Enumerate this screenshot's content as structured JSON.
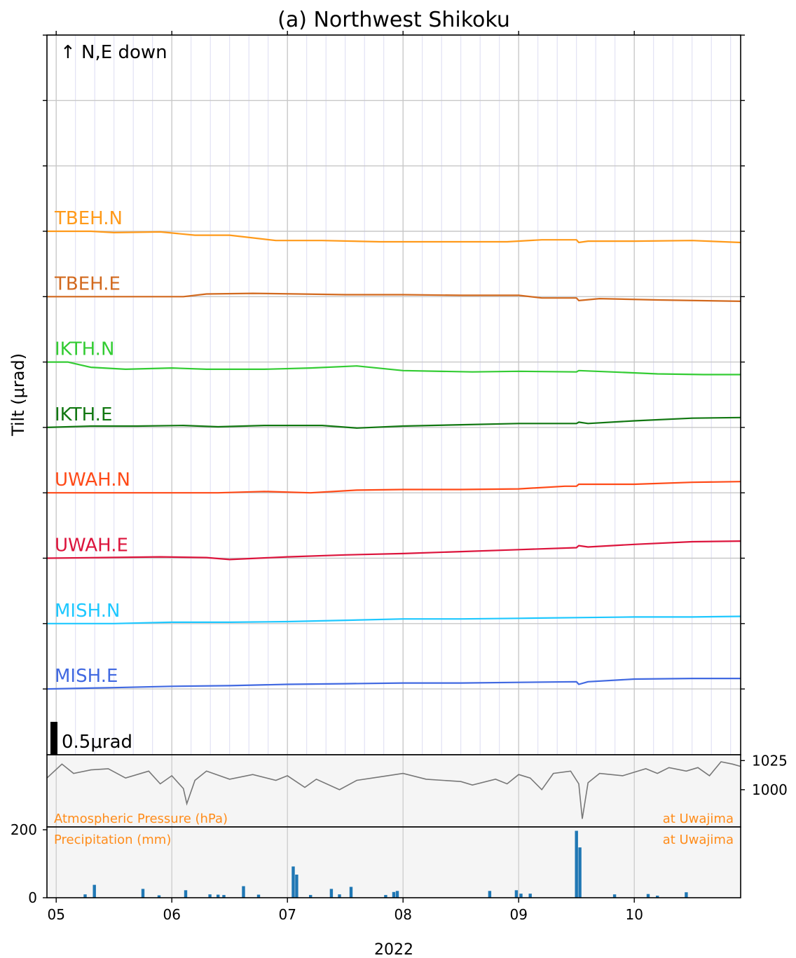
{
  "chart_data": [
    {
      "type": "line",
      "title": "(a) Northwest Shikoku",
      "ylabel": "Tilt (μrad)",
      "xlabel": "2022",
      "x_tick_labels": [
        "05",
        "06",
        "07",
        "08",
        "09",
        "10"
      ],
      "x_tick_days": [
        5,
        6,
        7,
        8,
        9,
        10
      ],
      "xlim_days": [
        4.92,
        10.92
      ],
      "direction_note": "↑ N,E down",
      "scale_bar_label": "0.5μrad",
      "scale_bar_value": 0.5,
      "grid": true,
      "series": [
        {
          "name": "TBEH.N",
          "color": "#ff9a1a",
          "x": [
            4.92,
            5.3,
            5.5,
            5.9,
            6.2,
            6.5,
            6.9,
            7.3,
            7.8,
            8.4,
            8.9,
            9.2,
            9.5,
            9.52,
            9.6,
            10.0,
            10.5,
            10.92
          ],
          "y": [
            0.0,
            0.0,
            -0.02,
            -0.01,
            -0.06,
            -0.06,
            -0.14,
            -0.14,
            -0.16,
            -0.16,
            -0.16,
            -0.13,
            -0.13,
            -0.17,
            -0.15,
            -0.15,
            -0.14,
            -0.17
          ]
        },
        {
          "name": "TBEH.E",
          "color": "#d2691e",
          "x": [
            4.92,
            5.5,
            6.1,
            6.3,
            6.7,
            7.1,
            7.5,
            8.0,
            8.5,
            9.0,
            9.2,
            9.5,
            9.52,
            9.7,
            10.2,
            10.92
          ],
          "y": [
            0.0,
            0.0,
            0.0,
            0.04,
            0.05,
            0.04,
            0.03,
            0.03,
            0.02,
            0.02,
            -0.02,
            -0.02,
            -0.06,
            -0.03,
            -0.05,
            -0.07
          ]
        },
        {
          "name": "IKTH.N",
          "color": "#33cc33",
          "x": [
            4.92,
            5.1,
            5.3,
            5.6,
            6.0,
            6.3,
            6.8,
            7.2,
            7.6,
            8.0,
            8.6,
            9.0,
            9.5,
            9.52,
            9.8,
            10.2,
            10.6,
            10.92
          ],
          "y": [
            0.0,
            0.0,
            -0.08,
            -0.11,
            -0.09,
            -0.11,
            -0.11,
            -0.09,
            -0.06,
            -0.13,
            -0.15,
            -0.14,
            -0.15,
            -0.13,
            -0.15,
            -0.18,
            -0.19,
            -0.19
          ]
        },
        {
          "name": "IKTH.E",
          "color": "#117711",
          "x": [
            4.92,
            5.3,
            5.7,
            6.1,
            6.4,
            6.8,
            7.3,
            7.6,
            8.0,
            8.5,
            9.0,
            9.5,
            9.52,
            9.6,
            10.0,
            10.5,
            10.92
          ],
          "y": [
            0.0,
            0.02,
            0.02,
            0.03,
            0.01,
            0.03,
            0.03,
            -0.01,
            0.02,
            0.04,
            0.06,
            0.06,
            0.08,
            0.06,
            0.1,
            0.14,
            0.15
          ]
        },
        {
          "name": "UWAH.N",
          "color": "#ff4a18",
          "x": [
            4.92,
            5.3,
            5.8,
            6.4,
            6.8,
            7.2,
            7.6,
            8.0,
            8.5,
            9.0,
            9.4,
            9.5,
            9.52,
            10.0,
            10.5,
            10.92
          ],
          "y": [
            0.0,
            0.0,
            0.0,
            0.0,
            0.02,
            0.0,
            0.04,
            0.05,
            0.05,
            0.06,
            0.1,
            0.1,
            0.13,
            0.13,
            0.16,
            0.17
          ]
        },
        {
          "name": "UWAH.E",
          "color": "#dc143c",
          "x": [
            4.92,
            5.4,
            5.9,
            6.3,
            6.5,
            7.0,
            7.5,
            8.0,
            8.5,
            9.0,
            9.5,
            9.52,
            9.6,
            10.0,
            10.5,
            10.92
          ],
          "y": [
            0.0,
            0.01,
            0.02,
            0.01,
            -0.02,
            0.02,
            0.05,
            0.07,
            0.1,
            0.13,
            0.16,
            0.19,
            0.17,
            0.21,
            0.25,
            0.26
          ]
        },
        {
          "name": "MISH.N",
          "color": "#1ec8ff",
          "x": [
            4.92,
            5.5,
            6.0,
            6.5,
            7.0,
            7.5,
            8.0,
            8.5,
            9.0,
            9.5,
            10.0,
            10.5,
            10.92
          ],
          "y": [
            0.0,
            0.0,
            0.02,
            0.02,
            0.03,
            0.05,
            0.07,
            0.07,
            0.08,
            0.09,
            0.1,
            0.1,
            0.11
          ]
        },
        {
          "name": "MISH.E",
          "color": "#4169e1",
          "x": [
            4.92,
            5.5,
            6.0,
            6.5,
            7.0,
            7.5,
            8.0,
            8.5,
            9.0,
            9.5,
            9.52,
            9.6,
            10.0,
            10.5,
            10.92
          ],
          "y": [
            0.0,
            0.02,
            0.04,
            0.05,
            0.07,
            0.08,
            0.09,
            0.09,
            0.1,
            0.11,
            0.07,
            0.11,
            0.15,
            0.16,
            0.16
          ]
        }
      ]
    },
    {
      "type": "line",
      "label": "Atmospheric Pressure (hPa)",
      "location": "at Uwajima",
      "y_tick_labels": [
        "1025",
        "1000"
      ],
      "y_ticks": [
        1025,
        1000
      ],
      "ylim": [
        968,
        1030
      ],
      "color": "#777777",
      "x": [
        4.92,
        5.05,
        5.15,
        5.3,
        5.45,
        5.6,
        5.8,
        5.9,
        6.0,
        6.1,
        6.13,
        6.2,
        6.3,
        6.5,
        6.7,
        6.9,
        7.0,
        7.15,
        7.25,
        7.45,
        7.6,
        7.8,
        8.0,
        8.2,
        8.5,
        8.6,
        8.8,
        8.9,
        9.0,
        9.1,
        9.2,
        9.3,
        9.45,
        9.52,
        9.55,
        9.6,
        9.7,
        9.9,
        10.1,
        10.2,
        10.3,
        10.45,
        10.55,
        10.65,
        10.75,
        10.85,
        10.92
      ],
      "y": [
        1010,
        1022,
        1014,
        1017,
        1018,
        1010,
        1016,
        1005,
        1012,
        1001,
        988,
        1008,
        1016,
        1009,
        1013,
        1008,
        1012,
        1002,
        1009,
        1000,
        1008,
        1011,
        1014,
        1009,
        1007,
        1004,
        1009,
        1005,
        1013,
        1010,
        1000,
        1014,
        1016,
        1005,
        975,
        1006,
        1014,
        1012,
        1018,
        1014,
        1019,
        1016,
        1019,
        1012,
        1024,
        1022,
        1020
      ]
    },
    {
      "type": "bar",
      "label": "Precipitation (mm)",
      "location": "at Uwajima",
      "y_tick_labels": [
        "200",
        "0"
      ],
      "y_ticks": [
        200,
        0
      ],
      "ylim": [
        0,
        200
      ],
      "color": "#1f77b4",
      "x": [
        5.25,
        5.33,
        5.75,
        5.89,
        6.12,
        6.33,
        6.4,
        6.45,
        6.62,
        6.75,
        7.05,
        7.08,
        7.2,
        7.38,
        7.45,
        7.55,
        7.85,
        7.92,
        7.95,
        8.75,
        8.98,
        9.02,
        9.1,
        9.5,
        9.53,
        9.83,
        10.12,
        10.2,
        10.45
      ],
      "values": [
        10,
        38,
        26,
        7,
        22,
        10,
        9,
        8,
        34,
        9,
        92,
        68,
        8,
        26,
        10,
        32,
        8,
        17,
        20,
        20,
        22,
        12,
        12,
        197,
        148,
        10,
        11,
        6,
        16
      ]
    }
  ]
}
